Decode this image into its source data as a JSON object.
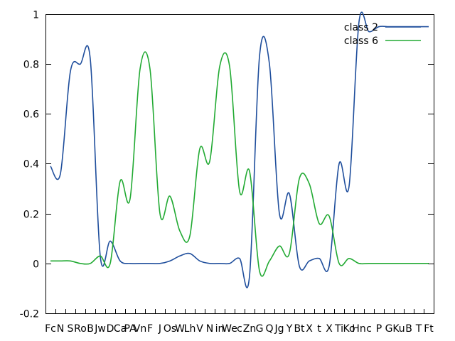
{
  "chart_data": {
    "type": "line",
    "title": "",
    "xlabel": "",
    "ylabel": "",
    "ylim": [
      -0.2,
      1
    ],
    "yticks": [
      -0.2,
      0,
      0.2,
      0.4,
      0.6,
      0.8,
      1
    ],
    "ytick_labels": [
      "-0.2",
      "0",
      "0.2",
      "0.4",
      "0.6",
      "0.8",
      "1"
    ],
    "grid": false,
    "legend_position": "top-right",
    "categories": [
      "Fc",
      "N",
      "S",
      "Ro",
      "B",
      "Jw",
      "D",
      "Ca",
      "PA",
      "Vn",
      "F",
      "J",
      "Os",
      "W",
      "Lh",
      "V",
      "N",
      "in",
      "We",
      "c",
      "Zn",
      "G",
      "Q",
      "Jg",
      "Y",
      "Bt",
      "X",
      "t",
      "X",
      "Ti",
      "Ko",
      "Hn",
      "c",
      "P",
      "G",
      "Ku",
      "B",
      "T",
      "Ft"
    ],
    "series": [
      {
        "name": "class 2",
        "color": "#1f4e9c",
        "values": [
          0.39,
          0.36,
          0.77,
          0.8,
          0.82,
          0.03,
          0.09,
          0.01,
          0.0,
          0.0,
          0.0,
          0.0,
          0.01,
          0.03,
          0.04,
          0.01,
          0.0,
          0.0,
          0.0,
          0.02,
          -0.05,
          0.83,
          0.8,
          0.2,
          0.28,
          -0.01,
          0.01,
          0.02,
          -0.01,
          0.4,
          0.31,
          0.97,
          0.93,
          0.95,
          0.95,
          0.95,
          0.95,
          0.95,
          0.95
        ]
      },
      {
        "name": "class 6",
        "color": "#22aa33",
        "values": [
          0.01,
          0.01,
          0.01,
          0.0,
          0.0,
          0.03,
          0.0,
          0.33,
          0.26,
          0.78,
          0.78,
          0.2,
          0.27,
          0.13,
          0.11,
          0.46,
          0.41,
          0.79,
          0.79,
          0.29,
          0.37,
          -0.03,
          0.01,
          0.07,
          0.04,
          0.34,
          0.32,
          0.16,
          0.19,
          0.0,
          0.02,
          0.0,
          0.0,
          0.0,
          0.0,
          0.0,
          0.0,
          0.0,
          0.0
        ]
      }
    ]
  }
}
